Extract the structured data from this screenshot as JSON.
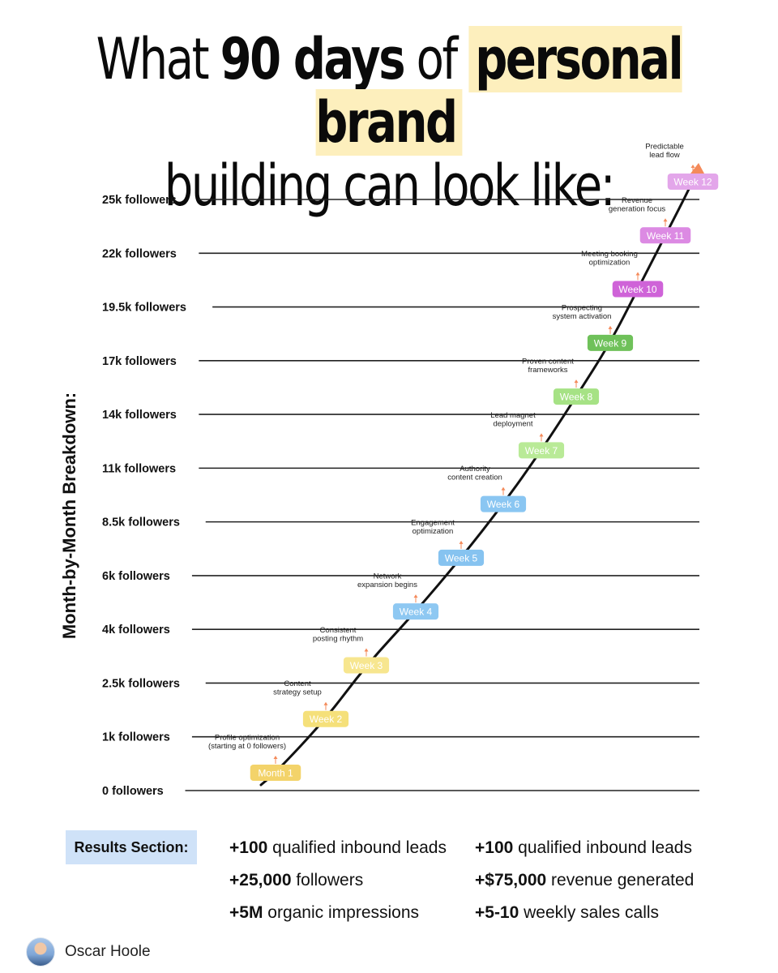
{
  "headline": {
    "w1": "What ",
    "w2": "90 days",
    "w3": " of ",
    "w4": "personal brand",
    "line2": "building can look like:"
  },
  "side_title": "Month-by-Month Breakdown:",
  "chart_data": {
    "type": "line",
    "title": "What 90 days of personal brand building can look like:",
    "ylabel": "Month-by-Month Breakdown:",
    "y_levels": [
      "0 followers",
      "1k followers",
      "2.5k followers",
      "4k followers",
      "6k followers",
      "8.5k followers",
      "11k followers",
      "14k followers",
      "17k followers",
      "19.5k followers",
      "22k followers",
      "25k followers"
    ],
    "y_values": [
      0,
      1000,
      2500,
      4000,
      6000,
      8500,
      11000,
      14000,
      17000,
      19500,
      22000,
      25000
    ],
    "milestones": [
      {
        "label": "Month 1",
        "value": 0,
        "note": [
          "Profile optimization",
          "(starting at 0 followers)"
        ],
        "color": "#f3d36a"
      },
      {
        "label": "Week 2",
        "value": 1000,
        "note": [
          "Content",
          "strategy setup"
        ],
        "color": "#f5e07a"
      },
      {
        "label": "Week 3",
        "value": 2500,
        "note": [
          "Consistent",
          "posting rhythm"
        ],
        "color": "#f7e68f"
      },
      {
        "label": "Week 4",
        "value": 4000,
        "note": [
          "Network",
          "expansion begins"
        ],
        "color": "#8ec8f2"
      },
      {
        "label": "Week 5",
        "value": 6000,
        "note": [
          "Engagement",
          "optimization"
        ],
        "color": "#86c3f0"
      },
      {
        "label": "Week 6",
        "value": 8500,
        "note": [
          "Authority",
          "content creation"
        ],
        "color": "#8ac6f2"
      },
      {
        "label": "Week 7",
        "value": 11000,
        "note": [
          "Lead magnet",
          "deployment"
        ],
        "color": "#b9ea97"
      },
      {
        "label": "Week 8",
        "value": 14000,
        "note": [
          "Proven content",
          "frameworks"
        ],
        "color": "#a6e285"
      },
      {
        "label": "Week 9",
        "value": 17000,
        "note": [
          "Prospecting",
          "system activation"
        ],
        "color": "#6fc15a"
      },
      {
        "label": "Week 10",
        "value": 19500,
        "note": [
          "Meeting booking",
          "optimization"
        ],
        "color": "#cf63d8"
      },
      {
        "label": "Week 11",
        "value": 22000,
        "note": [
          "Revenue",
          "generation focus"
        ],
        "color": "#dc8ae3"
      },
      {
        "label": "Week 12",
        "value": 25000,
        "note": [
          "Predictable",
          "lead flow"
        ],
        "color": "#e3a6ea"
      }
    ],
    "arrow_color": "#f48a5a"
  },
  "results": {
    "label": "Results Section:",
    "items": [
      {
        "bold": "+100",
        "text": " qualified inbound leads"
      },
      {
        "bold": "+25,000",
        "text": " followers"
      },
      {
        "bold": "+5M",
        "text": " organic impressions"
      },
      {
        "bold": "+100",
        "text": " qualified inbound leads"
      },
      {
        "bold": "+$75,000",
        "text": " revenue generated"
      },
      {
        "bold": "+5-10",
        "text": " weekly sales calls"
      }
    ]
  },
  "author": {
    "name": "Oscar Hoole"
  }
}
